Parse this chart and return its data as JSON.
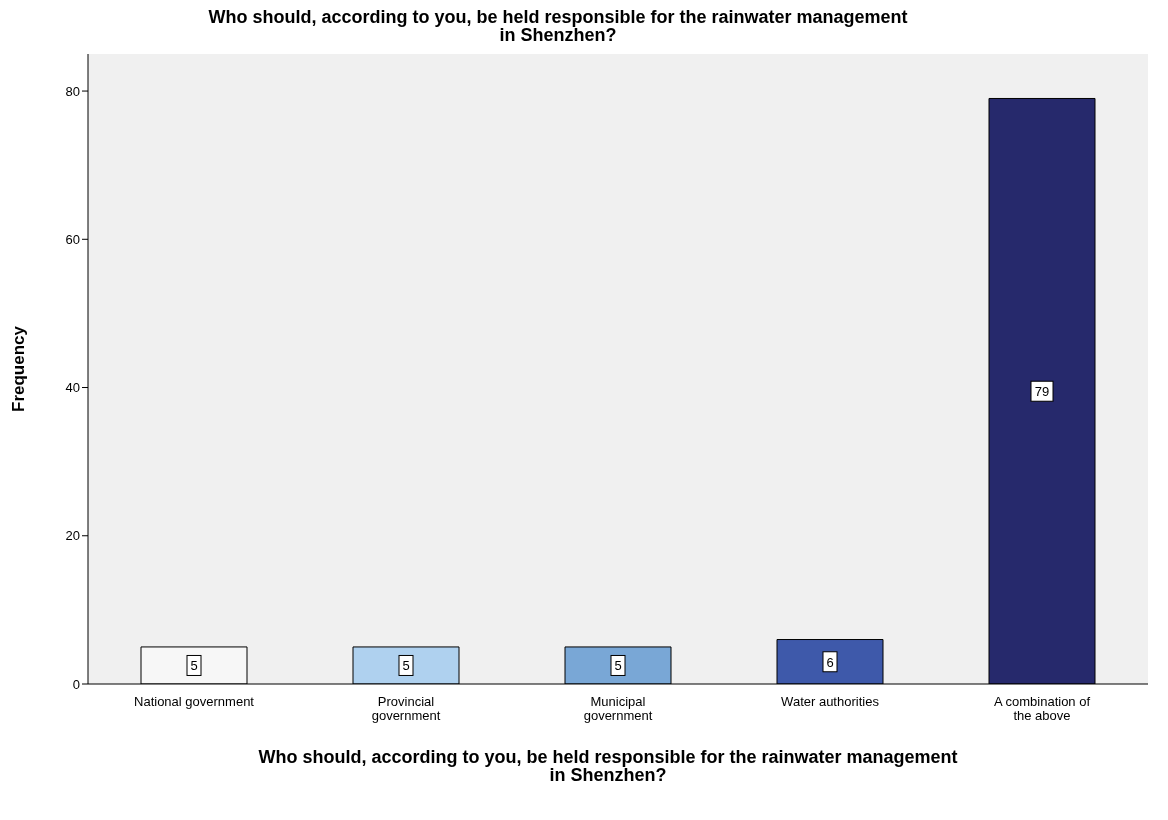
{
  "chart_data": {
    "type": "bar",
    "title": "Who should, according to you, be held responsible for the rainwater management in Shenzhen?",
    "xlabel": "Who should, according to you, be held responsible for the rainwater management in Shenzhen?",
    "ylabel": "Frequency",
    "categories": [
      "National government",
      "Provincial government",
      "Municipal government",
      "Water authorities",
      "A combination of the above"
    ],
    "values": [
      5,
      5,
      5,
      6,
      79
    ],
    "colors": [
      "#f7f7f7",
      "#afd1ef",
      "#79a7d6",
      "#3e59aa",
      "#26296c"
    ],
    "ylim": [
      0,
      85
    ],
    "yticks": [
      0,
      20,
      40,
      60,
      80
    ],
    "grid": false,
    "data_labels": true
  }
}
